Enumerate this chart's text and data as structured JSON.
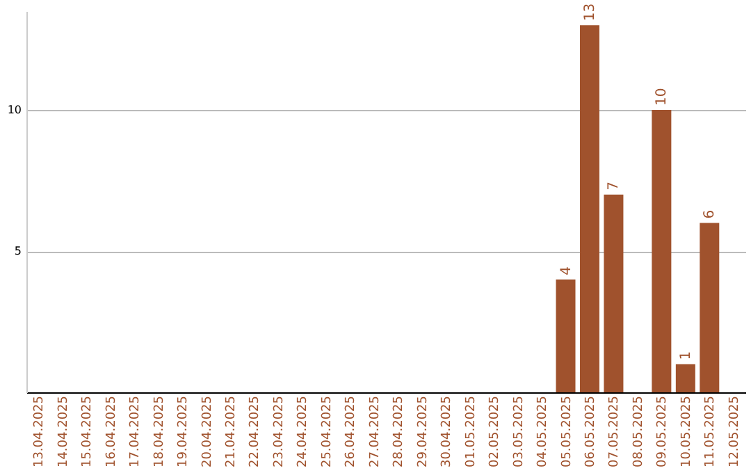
{
  "chart_data": {
    "type": "bar",
    "categories": [
      "13.04.2025",
      "14.04.2025",
      "15.04.2025",
      "16.04.2025",
      "17.04.2025",
      "18.04.2025",
      "19.04.2025",
      "20.04.2025",
      "21.04.2025",
      "22.04.2025",
      "23.04.2025",
      "24.04.2025",
      "25.04.2025",
      "26.04.2025",
      "27.04.2025",
      "28.04.2025",
      "29.04.2025",
      "30.04.2025",
      "01.05.2025",
      "02.05.2025",
      "03.05.2025",
      "04.05.2025",
      "05.05.2025",
      "06.05.2025",
      "07.05.2025",
      "08.05.2025",
      "09.05.2025",
      "10.05.2025",
      "11.05.2025",
      "12.05.2025"
    ],
    "values": [
      0,
      0,
      0,
      0,
      0,
      0,
      0,
      0,
      0,
      0,
      0,
      0,
      0,
      0,
      0,
      0,
      0,
      0,
      0,
      0,
      0,
      0,
      4,
      13,
      7,
      0,
      10,
      1,
      6,
      0
    ],
    "value_labels": [
      null,
      null,
      null,
      null,
      null,
      null,
      null,
      null,
      null,
      null,
      null,
      null,
      null,
      null,
      null,
      null,
      null,
      null,
      null,
      null,
      null,
      null,
      "4",
      "13",
      "7",
      null,
      "10",
      "1",
      "6",
      null
    ],
    "color": "#a0522d",
    "ylim": [
      0,
      13.5
    ],
    "yticks": [
      5,
      10
    ],
    "grid": "y"
  }
}
